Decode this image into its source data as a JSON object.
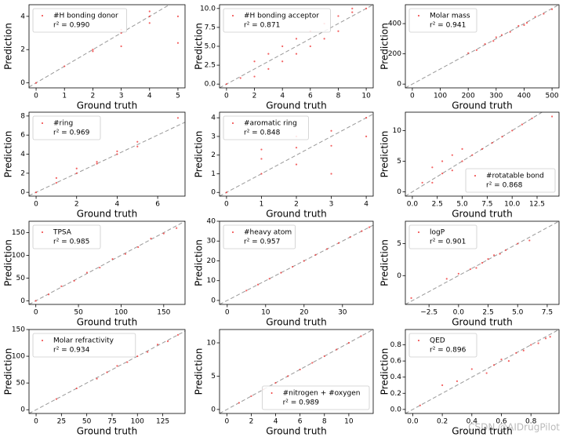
{
  "chart_data": [
    {
      "type": "scatter",
      "xlabel": "Ground truth",
      "ylabel": "Prediction",
      "annotation": "r² = 0.990",
      "legend": "upper left",
      "xlim": [
        -0.25,
        5.25
      ],
      "ylim": [
        -0.3,
        4.7
      ],
      "xticks": [
        0,
        1,
        2,
        3,
        4,
        5
      ],
      "yticks": [
        0,
        2,
        4
      ],
      "x": [
        0,
        1,
        2,
        2,
        3,
        3,
        3,
        4,
        4,
        4,
        5,
        5
      ],
      "series": [
        {
          "name": "#H bonding donor",
          "color": "#f03c3c",
          "values": [
            0,
            1,
            2,
            1.9,
            3,
            3.2,
            2.2,
            4,
            3.6,
            4.3,
            4,
            2.4
          ]
        }
      ]
    },
    {
      "type": "scatter",
      "xlabel": "Ground truth",
      "ylabel": "Prediction",
      "annotation": "r² = 0.871",
      "legend": "upper left",
      "xlim": [
        -0.5,
        10.5
      ],
      "ylim": [
        -0.5,
        10.5
      ],
      "xticks": [
        0,
        2,
        4,
        6,
        8,
        10
      ],
      "yticks": [
        {
          "value": 0,
          "label": "0.0"
        },
        {
          "value": 2.5,
          "label": "2.5"
        },
        {
          "value": 5,
          "label": "5.0"
        },
        {
          "value": 7.5,
          "label": "7.5"
        },
        {
          "value": 10,
          "label": "10.0"
        }
      ],
      "x": [
        0,
        1,
        2,
        2,
        3,
        3,
        4,
        4,
        5,
        5,
        6,
        6,
        7,
        7,
        8,
        8,
        9,
        9,
        10
      ],
      "series": [
        {
          "name": "#H bonding acceptor",
          "color": "#f03c3c",
          "values": [
            0,
            0.8,
            1,
            3,
            2,
            4,
            3,
            5,
            4,
            6,
            5,
            7,
            6,
            8,
            7,
            9,
            9.5,
            10,
            10
          ]
        }
      ]
    },
    {
      "type": "scatter",
      "xlabel": "Ground truth",
      "ylabel": "Prediction",
      "annotation": "r² = 0.941",
      "legend": "upper left",
      "xlim": [
        -25,
        525
      ],
      "ylim": [
        -25,
        525
      ],
      "xticks": [
        0,
        100,
        200,
        300,
        400,
        500
      ],
      "yticks": [
        0,
        200,
        400
      ],
      "x": [
        200,
        230,
        260,
        290,
        320,
        350,
        380,
        410,
        440,
        470,
        500,
        300,
        400
      ],
      "series": [
        {
          "name": "Molar mass",
          "color": "#f03c3c",
          "values": [
            205,
            225,
            265,
            285,
            325,
            345,
            385,
            405,
            445,
            465,
            495,
            310,
            390
          ]
        }
      ]
    },
    {
      "type": "scatter",
      "xlabel": "Ground truth",
      "ylabel": "Prediction",
      "annotation": "r² = 0.969",
      "legend": "upper left",
      "xlim": [
        -0.35,
        7.35
      ],
      "ylim": [
        -0.4,
        8.4
      ],
      "xticks": [
        0,
        2,
        4,
        6
      ],
      "yticks": [
        0,
        2,
        4,
        6,
        8
      ],
      "x": [
        0,
        1,
        1,
        2,
        2,
        3,
        3,
        4,
        4,
        5,
        5,
        7
      ],
      "series": [
        {
          "name": "#ring",
          "color": "#f03c3c",
          "values": [
            0,
            1,
            1.5,
            2,
            2.5,
            3,
            3.2,
            4,
            4.3,
            4.8,
            5.3,
            7.8
          ]
        }
      ]
    },
    {
      "type": "scatter",
      "xlabel": "Ground truth",
      "ylabel": "Prediction",
      "annotation": "r² = 0.848",
      "legend": "upper left",
      "xlim": [
        -0.2,
        4.2
      ],
      "ylim": [
        -0.2,
        4.3
      ],
      "xticks": [
        0,
        1,
        2,
        3,
        4
      ],
      "yticks": [
        0,
        1,
        2,
        3,
        4
      ],
      "x": [
        0,
        1,
        1,
        1,
        2,
        2,
        2,
        3,
        3,
        3,
        4,
        4
      ],
      "series": [
        {
          "name": "#aromatic ring",
          "color": "#f03c3c",
          "values": [
            0,
            1,
            1.8,
            2.3,
            1.5,
            2.4,
            3,
            2.5,
            3.3,
            1,
            4,
            3
          ]
        }
      ]
    },
    {
      "type": "scatter",
      "xlabel": "Ground truth",
      "ylabel": "Prediction",
      "annotation": "r² = 0.868",
      "legend": "lower right",
      "xlim": [
        -0.7,
        14.7
      ],
      "ylim": [
        -0.7,
        13
      ],
      "xticks": [
        {
          "value": 0,
          "label": "0.0"
        },
        {
          "value": 2.5,
          "label": "2.5"
        },
        {
          "value": 5,
          "label": "5.0"
        },
        {
          "value": 7.5,
          "label": "7.5"
        },
        {
          "value": 10,
          "label": "10.0"
        },
        {
          "value": 12.5,
          "label": "12.5"
        }
      ],
      "yticks": [
        0,
        5,
        10
      ],
      "x": [
        1,
        2,
        2,
        3,
        3,
        4,
        4,
        5,
        5,
        6,
        7,
        8,
        9,
        10,
        11,
        12,
        14
      ],
      "series": [
        {
          "name": "#rotatable bond",
          "color": "#f03c3c",
          "values": [
            1.5,
            1.5,
            4,
            3,
            5,
            3.5,
            6,
            5,
            7,
            6,
            7,
            8,
            9,
            10,
            11,
            12,
            12.3
          ]
        }
      ]
    },
    {
      "type": "scatter",
      "xlabel": "Ground truth",
      "ylabel": "Prediction",
      "annotation": "r² = 0.985",
      "legend": "upper left",
      "xlim": [
        -8,
        175
      ],
      "ylim": [
        -8,
        175
      ],
      "xticks": [
        0,
        50,
        100,
        150
      ],
      "yticks": [
        0,
        50,
        100,
        150
      ],
      "x": [
        0,
        15,
        30,
        45,
        60,
        75,
        90,
        105,
        120,
        135,
        150,
        165
      ],
      "series": [
        {
          "name": "TPSA",
          "color": "#f03c3c",
          "values": [
            0,
            14,
            32,
            44,
            62,
            73,
            92,
            103,
            118,
            137,
            148,
            160
          ]
        }
      ]
    },
    {
      "type": "scatter",
      "xlabel": "Ground truth",
      "ylabel": "Prediction",
      "annotation": "r² = 0.957",
      "legend": "upper left",
      "xlim": [
        -2,
        38
      ],
      "ylim": [
        -2,
        40
      ],
      "xticks": [
        0,
        10,
        20,
        30
      ],
      "yticks": [
        0,
        10,
        20,
        30,
        40
      ],
      "x": [
        5,
        8,
        11,
        14,
        17,
        20,
        23,
        26,
        29,
        32,
        35,
        37
      ],
      "series": [
        {
          "name": "#heavy atom",
          "color": "#f03c3c",
          "values": [
            5,
            8,
            11,
            14,
            17,
            20,
            23,
            26,
            29,
            32,
            35,
            37
          ]
        }
      ]
    },
    {
      "type": "scatter",
      "xlabel": "Ground truth",
      "ylabel": "Prediction",
      "annotation": "r² = 0.901",
      "legend": "upper left",
      "xlim": [
        -4.5,
        8.5
      ],
      "ylim": [
        -4.5,
        8.5
      ],
      "xticks": [
        {
          "value": -2.5,
          "label": "−2.5"
        },
        {
          "value": 0,
          "label": "0.0"
        },
        {
          "value": 2.5,
          "label": "2.5"
        },
        {
          "value": 5,
          "label": "5.0"
        },
        {
          "value": 7.5,
          "label": "7.5"
        }
      ],
      "yticks": [
        0,
        5
      ],
      "x": [
        -4,
        -1,
        0,
        1,
        1.5,
        2,
        2.5,
        3,
        3.5,
        4,
        5,
        6
      ],
      "series": [
        {
          "name": "logP",
          "color": "#f03c3c",
          "values": [
            -3.5,
            -0.5,
            0.3,
            1,
            1.2,
            2,
            2.6,
            3.2,
            3.4,
            4,
            5,
            5.5
          ]
        }
      ]
    },
    {
      "type": "scatter",
      "xlabel": "Ground truth",
      "ylabel": "Prediction",
      "annotation": "r² = 0.934",
      "legend": "upper left",
      "xlim": [
        -7,
        147
      ],
      "ylim": [
        -7,
        150
      ],
      "xticks": [
        0,
        25,
        50,
        75,
        100,
        125
      ],
      "yticks": [
        0,
        50,
        100,
        150
      ],
      "x": [
        20,
        40,
        60,
        70,
        80,
        90,
        100,
        110,
        120,
        130,
        140
      ],
      "series": [
        {
          "name": "Molar refractivity",
          "color": "#f03c3c",
          "values": [
            20,
            40,
            58,
            70,
            82,
            89,
            100,
            108,
            122,
            128,
            140
          ]
        }
      ]
    },
    {
      "type": "scatter",
      "xlabel": "Ground truth",
      "ylabel": "Prediction",
      "annotation": "r² = 0.989",
      "legend": "lower right",
      "xlim": [
        -0.6,
        12
      ],
      "ylim": [
        -0.6,
        12
      ],
      "xticks": [
        0,
        2,
        4,
        6,
        8,
        10
      ],
      "yticks": [
        0,
        5,
        10
      ],
      "x": [
        1,
        2,
        3,
        4,
        5,
        6,
        7,
        8,
        9,
        10,
        11
      ],
      "series": [
        {
          "name": "#nitrogen + #oxygen",
          "color": "#f03c3c",
          "values": [
            1,
            2,
            3,
            4,
            5,
            6,
            7,
            8,
            9,
            10,
            11
          ]
        }
      ]
    },
    {
      "type": "scatter",
      "xlabel": "Ground truth",
      "ylabel": "Prediction",
      "annotation": "r² = 0.896",
      "legend": "upper left",
      "xlim": [
        -0.05,
        0.99
      ],
      "ylim": [
        -0.05,
        0.99
      ],
      "xticks": [
        {
          "value": 0,
          "label": "0.0"
        },
        {
          "value": 0.2,
          "label": "0.2"
        },
        {
          "value": 0.4,
          "label": "0.4"
        },
        {
          "value": 0.6,
          "label": "0.6"
        },
        {
          "value": 0.8,
          "label": "0.8"
        }
      ],
      "yticks": [
        {
          "value": 0,
          "label": "0.0"
        },
        {
          "value": 0.2,
          "label": "0.2"
        },
        {
          "value": 0.4,
          "label": "0.4"
        },
        {
          "value": 0.6,
          "label": "0.6"
        },
        {
          "value": 0.8,
          "label": "0.8"
        }
      ],
      "x": [
        0.05,
        0.2,
        0.3,
        0.4,
        0.5,
        0.55,
        0.6,
        0.65,
        0.7,
        0.75,
        0.8,
        0.85,
        0.9,
        0.93
      ],
      "series": [
        {
          "name": "QED",
          "color": "#f03c3c",
          "values": [
            0.05,
            0.3,
            0.35,
            0.5,
            0.45,
            0.55,
            0.62,
            0.6,
            0.7,
            0.73,
            0.8,
            0.82,
            0.88,
            0.9
          ]
        }
      ]
    }
  ],
  "watermark": "CSDN @AIDrugPilot"
}
